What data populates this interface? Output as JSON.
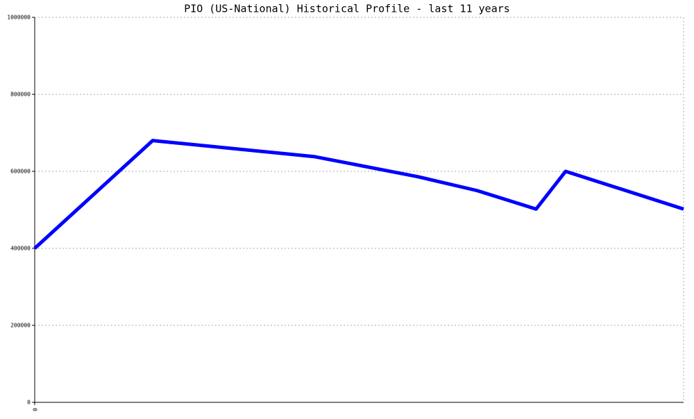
{
  "chart_data": {
    "type": "line",
    "title": "PIO (US-National) Historical Profile - last 11 years",
    "x": [
      0,
      2,
      4.75,
      6.5,
      7.5,
      8.5,
      9,
      11
    ],
    "series": [
      {
        "name": "PIO",
        "color": "#0000ff",
        "values": [
          400000,
          680000,
          638000,
          586000,
          550000,
          502000,
          600000,
          502000
        ]
      }
    ],
    "xlim": [
      0,
      11
    ],
    "xticks": [
      0
    ],
    "ylim": [
      0,
      1000000
    ],
    "yticks": [
      0,
      200000,
      400000,
      600000,
      800000,
      1000000
    ],
    "grid": true,
    "legend": false
  }
}
